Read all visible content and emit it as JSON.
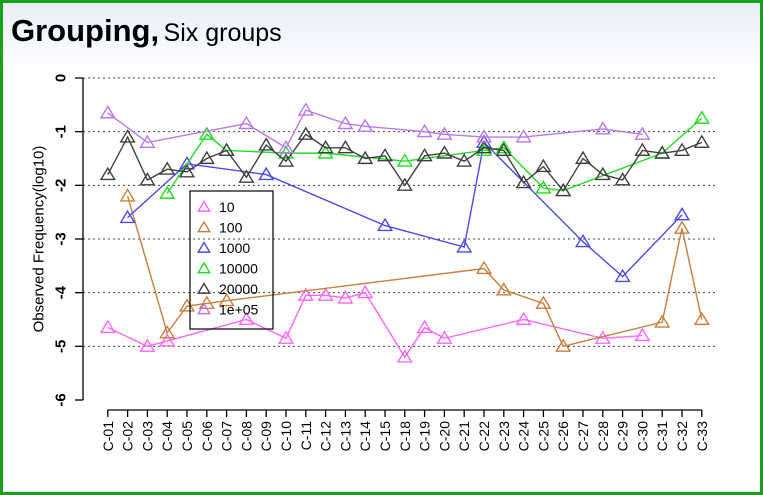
{
  "title": {
    "main": "Grouping,",
    "sub": "Six groups"
  },
  "chart_data": {
    "type": "line",
    "ylabel": "Observed Frequency(log10)",
    "xlabel": "",
    "ylim": [
      -6,
      0
    ],
    "yticks": [
      0,
      -1,
      -2,
      -3,
      -4,
      -5,
      -6
    ],
    "grid": "horizontal-dotted",
    "legend_position": "left-middle",
    "categories": [
      "C-01",
      "C-02",
      "C-03",
      "C-04",
      "C-05",
      "C-06",
      "C-07",
      "C-08",
      "C-09",
      "C-10",
      "C-11",
      "C-12",
      "C-13",
      "C-14",
      "C-15",
      "C-18",
      "C-19",
      "C-20",
      "C-21",
      "C-22",
      "C-23",
      "C-24",
      "C-25",
      "C-26",
      "C-27",
      "C-28",
      "C-29",
      "C-30",
      "C-31",
      "C-32",
      "C-33"
    ],
    "series": [
      {
        "name": "10",
        "color": "#ff66ff",
        "points": [
          [
            "C-01",
            -4.65
          ],
          [
            "C-03",
            -5.0
          ],
          [
            "C-04",
            -4.9
          ],
          [
            "C-08",
            -4.5
          ],
          [
            "C-10",
            -4.85
          ],
          [
            "C-11",
            -4.05
          ],
          [
            "C-12",
            -4.05
          ],
          [
            "C-13",
            -4.1
          ],
          [
            "C-14",
            -4.0
          ],
          [
            "C-18",
            -5.2
          ],
          [
            "C-19",
            -4.65
          ],
          [
            "C-20",
            -4.85
          ],
          [
            "C-24",
            -4.5
          ],
          [
            "C-28",
            -4.85
          ],
          [
            "C-30",
            -4.8
          ]
        ]
      },
      {
        "name": "100",
        "color": "#c87f3c",
        "points": [
          [
            "C-02",
            -2.2
          ],
          [
            "C-04",
            -4.75
          ],
          [
            "C-05",
            -4.25
          ],
          [
            "C-06",
            -4.2
          ],
          [
            "C-07",
            -4.15
          ],
          [
            "C-22",
            -3.55
          ],
          [
            "C-23",
            -3.95
          ],
          [
            "C-25",
            -4.2
          ],
          [
            "C-26",
            -5.0
          ],
          [
            "C-31",
            -4.55
          ],
          [
            "C-32",
            -2.8
          ],
          [
            "C-33",
            -4.5
          ]
        ]
      },
      {
        "name": "1000",
        "color": "#4a4aee",
        "points": [
          [
            "C-02",
            -2.6
          ],
          [
            "C-05",
            -1.6
          ],
          [
            "C-09",
            -1.8
          ],
          [
            "C-15",
            -2.75
          ],
          [
            "C-21",
            -3.15
          ],
          [
            "C-22",
            -1.2
          ],
          [
            "C-27",
            -3.05
          ],
          [
            "C-29",
            -3.7
          ],
          [
            "C-32",
            -2.55
          ]
        ]
      },
      {
        "name": "10000",
        "color": "#22dd22",
        "points": [
          [
            "C-04",
            -2.15
          ],
          [
            "C-06",
            -1.05
          ],
          [
            "C-07",
            -1.35
          ],
          [
            "C-10",
            -1.4
          ],
          [
            "C-12",
            -1.4
          ],
          [
            "C-18",
            -1.55
          ],
          [
            "C-22",
            -1.35
          ],
          [
            "C-23",
            -1.3
          ],
          [
            "C-25",
            -2.05
          ],
          [
            "C-26",
            -2.1
          ],
          [
            "C-31",
            -1.4
          ],
          [
            "C-33",
            -0.75
          ]
        ]
      },
      {
        "name": "20000",
        "color": "#404040",
        "points": [
          [
            "C-01",
            -1.8
          ],
          [
            "C-02",
            -1.1
          ],
          [
            "C-03",
            -1.9
          ],
          [
            "C-04",
            -1.7
          ],
          [
            "C-05",
            -1.75
          ],
          [
            "C-06",
            -1.5
          ],
          [
            "C-07",
            -1.35
          ],
          [
            "C-08",
            -1.85
          ],
          [
            "C-09",
            -1.25
          ],
          [
            "C-10",
            -1.55
          ],
          [
            "C-11",
            -1.05
          ],
          [
            "C-12",
            -1.3
          ],
          [
            "C-13",
            -1.3
          ],
          [
            "C-14",
            -1.5
          ],
          [
            "C-15",
            -1.45
          ],
          [
            "C-18",
            -2.0
          ],
          [
            "C-19",
            -1.45
          ],
          [
            "C-20",
            -1.4
          ],
          [
            "C-21",
            -1.55
          ],
          [
            "C-22",
            -1.3
          ],
          [
            "C-23",
            -1.35
          ],
          [
            "C-24",
            -1.95
          ],
          [
            "C-25",
            -1.65
          ],
          [
            "C-26",
            -2.1
          ],
          [
            "C-27",
            -1.5
          ],
          [
            "C-28",
            -1.8
          ],
          [
            "C-29",
            -1.9
          ],
          [
            "C-30",
            -1.35
          ],
          [
            "C-31",
            -1.4
          ],
          [
            "C-32",
            -1.35
          ],
          [
            "C-33",
            -1.2
          ]
        ]
      },
      {
        "name": "1e+05",
        "color": "#bb77ee",
        "points": [
          [
            "C-01",
            -0.65
          ],
          [
            "C-03",
            -1.2
          ],
          [
            "C-08",
            -0.85
          ],
          [
            "C-10",
            -1.3
          ],
          [
            "C-11",
            -0.6
          ],
          [
            "C-13",
            -0.85
          ],
          [
            "C-14",
            -0.9
          ],
          [
            "C-19",
            -1.0
          ],
          [
            "C-20",
            -1.05
          ],
          [
            "C-22",
            -1.1
          ],
          [
            "C-24",
            -1.1
          ],
          [
            "C-28",
            -0.95
          ],
          [
            "C-30",
            -1.05
          ]
        ]
      }
    ]
  }
}
